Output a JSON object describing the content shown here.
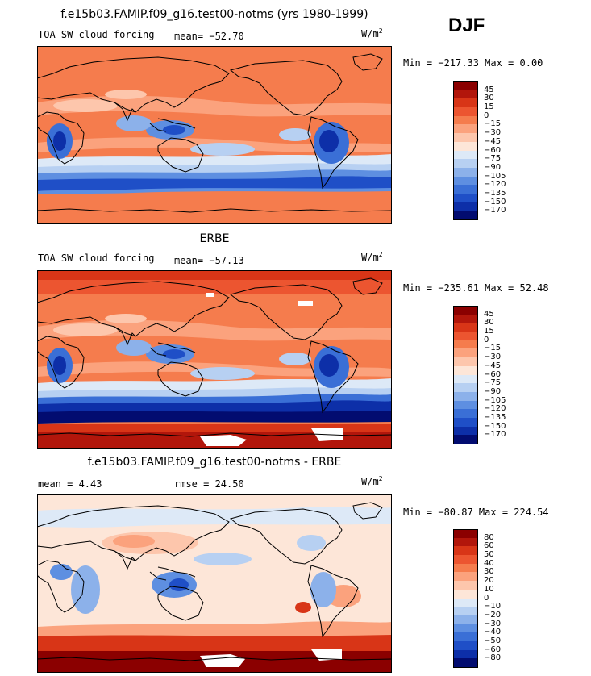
{
  "season": "DJF",
  "panels": [
    {
      "title": "f.e15b03.FAMIP.f09_g16.test00-notms (yrs 1980-1999)",
      "left_label": "TOA SW cloud forcing",
      "mean_text": "mean=  −52.70",
      "rmse_text": "",
      "units": "W/m",
      "units_sup": "2",
      "minmax": "Min = −217.33 Max =   0.00",
      "colorbar": {
        "labels": [
          "45",
          "30",
          "15",
          "0",
          "−15",
          "−30",
          "−45",
          "−60",
          "−75",
          "−90",
          "−105",
          "−120",
          "−135",
          "−150",
          "−170"
        ],
        "colors": [
          "#8b0000",
          "#b2160b",
          "#d83517",
          "#ec5530",
          "#f57c4d",
          "#fba27d",
          "#fdc6ac",
          "#fde6d8",
          "#dde9f7",
          "#b7d0f2",
          "#8cb1ea",
          "#5e8fe1",
          "#3a6fd6",
          "#1f4fc7",
          "#0d2fa8",
          "#020c70"
        ]
      },
      "map": {
        "palette": "abs"
      }
    },
    {
      "title": "ERBE",
      "left_label": "TOA SW cloud forcing",
      "mean_text": "mean= −57.13",
      "rmse_text": "",
      "units": "W/m",
      "units_sup": "2",
      "minmax": "Min = −235.61 Max =  52.48",
      "colorbar": {
        "labels": [
          "45",
          "30",
          "15",
          "0",
          "−15",
          "−30",
          "−45",
          "−60",
          "−75",
          "−90",
          "−105",
          "−120",
          "−135",
          "−150",
          "−170"
        ],
        "colors": [
          "#8b0000",
          "#b2160b",
          "#d83517",
          "#ec5530",
          "#f57c4d",
          "#fba27d",
          "#fdc6ac",
          "#fde6d8",
          "#dde9f7",
          "#b7d0f2",
          "#8cb1ea",
          "#5e8fe1",
          "#3a6fd6",
          "#1f4fc7",
          "#0d2fa8",
          "#020c70"
        ]
      },
      "map": {
        "palette": "abs"
      }
    },
    {
      "title": "f.e15b03.FAMIP.f09_g16.test00-notms - ERBE",
      "left_label": "",
      "mean_text": "mean =   4.43",
      "rmse_text": "rmse =  24.50",
      "units": "W/m",
      "units_sup": "2",
      "minmax": "Min = −80.87 Max = 224.54",
      "colorbar": {
        "labels": [
          "80",
          "60",
          "50",
          "40",
          "30",
          "20",
          "10",
          "0",
          "−10",
          "−20",
          "−30",
          "−40",
          "−50",
          "−60",
          "−80"
        ],
        "colors": [
          "#8b0000",
          "#b2160b",
          "#d83517",
          "#ec5530",
          "#f57c4d",
          "#fba27d",
          "#fdc6ac",
          "#fde6d8",
          "#dde9f7",
          "#b7d0f2",
          "#8cb1ea",
          "#5e8fe1",
          "#3a6fd6",
          "#1f4fc7",
          "#0d2fa8",
          "#020c70"
        ]
      },
      "map": {
        "palette": "diff"
      }
    }
  ]
}
